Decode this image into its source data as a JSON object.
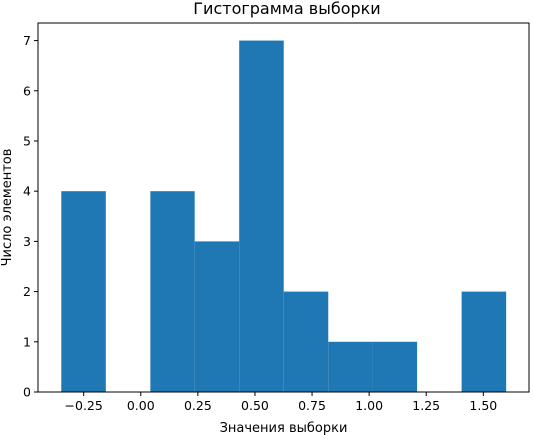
{
  "chart_data": {
    "type": "bar",
    "title": "Гистограмма выборки",
    "xlabel": "Значения выборки",
    "ylabel": "Число элементов",
    "bins": [
      {
        "x0": -0.348,
        "x1": -0.153,
        "count": 4
      },
      {
        "x0": -0.153,
        "x1": 0.042,
        "count": 0
      },
      {
        "x0": 0.042,
        "x1": 0.236,
        "count": 4
      },
      {
        "x0": 0.236,
        "x1": 0.431,
        "count": 3
      },
      {
        "x0": 0.431,
        "x1": 0.626,
        "count": 7
      },
      {
        "x0": 0.626,
        "x1": 0.821,
        "count": 2
      },
      {
        "x0": 0.821,
        "x1": 1.015,
        "count": 1
      },
      {
        "x0": 1.015,
        "x1": 1.21,
        "count": 1
      },
      {
        "x0": 1.21,
        "x1": 1.405,
        "count": 0
      },
      {
        "x0": 1.405,
        "x1": 1.6,
        "count": 2
      }
    ],
    "xlim": [
      -0.45,
      1.7
    ],
    "ylim": [
      0,
      7.35
    ],
    "xticks": [
      -0.25,
      0.0,
      0.25,
      0.5,
      0.75,
      1.0,
      1.25,
      1.5
    ],
    "xtick_labels": [
      "−0.25",
      "0.00",
      "0.25",
      "0.50",
      "0.75",
      "1.00",
      "1.25",
      "1.50"
    ],
    "yticks": [
      0,
      1,
      2,
      3,
      4,
      5,
      6,
      7
    ],
    "ytick_labels": [
      "0",
      "1",
      "2",
      "3",
      "4",
      "5",
      "6",
      "7"
    ],
    "grid": false,
    "bar_color": "#1f77b4"
  }
}
